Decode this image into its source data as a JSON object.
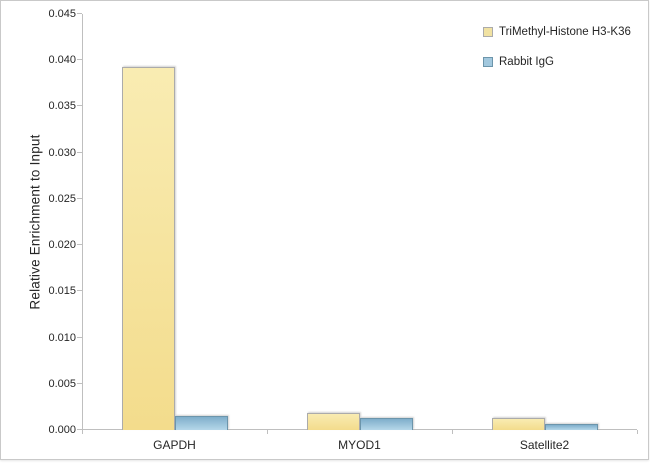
{
  "chart_data": {
    "type": "bar",
    "categories": [
      "GAPDH",
      "MYOD1",
      "Satellite2"
    ],
    "series": [
      {
        "name": "TriMethyl-Histone H3-K36",
        "values": [
          0.0393,
          0.0018,
          0.0013
        ],
        "fill_top": "#F9ECB2",
        "fill_bottom": "#F3DC8C",
        "border": "#ABABAB",
        "swatch": "#F1E2A2"
      },
      {
        "name": "Rabbit IgG",
        "values": [
          0.0015,
          0.0013,
          0.0006
        ],
        "fill_top": "#7FAECB",
        "fill_bottom": "#B5D7E9",
        "border": "#6C95AB",
        "swatch": "#A2C8DE"
      }
    ],
    "ylabel": "Relative Enrichment to Input",
    "ylim": [
      0,
      0.045
    ],
    "y_tick_step": 0.005,
    "y_tick_labels": [
      "0.000",
      "0.005",
      "0.010",
      "0.015",
      "0.020",
      "0.025",
      "0.030",
      "0.035",
      "0.040",
      "0.045"
    ],
    "legend_position": "top-right",
    "grid": false,
    "axis_color": "#BFBFBF",
    "text_color": "#262626"
  }
}
